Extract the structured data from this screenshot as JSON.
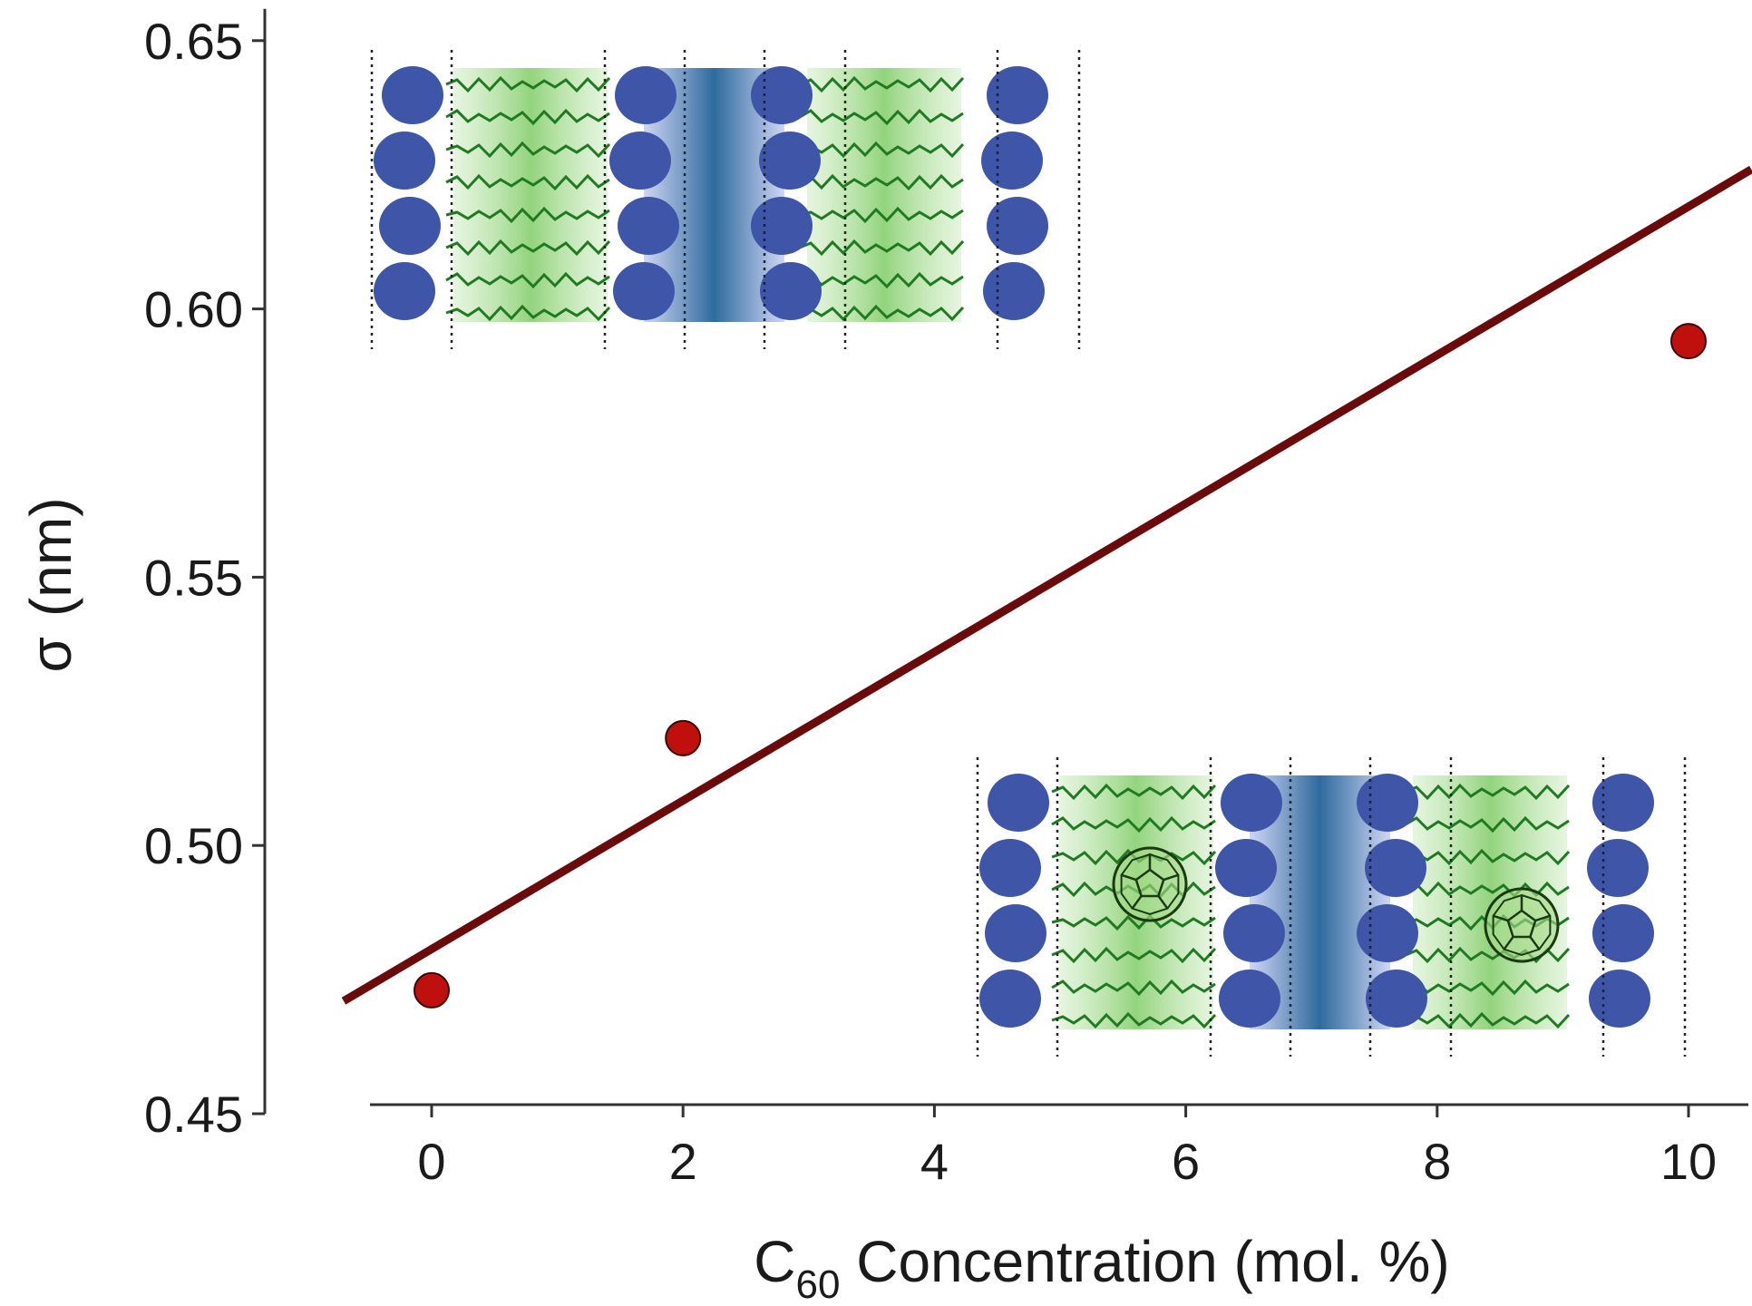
{
  "chart_data": {
    "type": "scatter",
    "title": "",
    "xlabel": {
      "prefix": "C",
      "subscript": "60",
      "rest": " Concentration (mol. %)"
    },
    "ylabel": {
      "symbol": "σ",
      "unit": "(nm)"
    },
    "xlim": [
      -0.5,
      10.5
    ],
    "ylim": [
      0.45,
      0.65
    ],
    "x_ticks": [
      0,
      2,
      4,
      6,
      8,
      10
    ],
    "x_tick_labels": [
      "0",
      "2",
      "4",
      "6",
      "8",
      "10"
    ],
    "y_ticks": [
      0.45,
      0.5,
      0.55,
      0.6,
      0.65
    ],
    "y_tick_labels": [
      "0.45",
      "0.50",
      "0.55",
      "0.60",
      "0.65"
    ],
    "grid": false,
    "legend": "none",
    "series": [
      {
        "marker": "circle",
        "color": "#c0100e",
        "x": [
          0,
          2,
          10
        ],
        "y": [
          0.473,
          0.52,
          0.594
        ]
      }
    ],
    "fit_line": {
      "color": "#6b0a0a",
      "x": [
        -0.7,
        10.5
      ],
      "y": [
        0.471,
        0.626
      ]
    },
    "insets": [
      {
        "position": "top-left",
        "description_icon": "lipid-bilayer-pair-icon",
        "has_fullerene": false
      },
      {
        "position": "bottom-right",
        "description_icon": "lipid-bilayer-pair-with-c60-icon",
        "has_fullerene": true
      }
    ],
    "colors": {
      "head": "#3f55a8",
      "tail": "#1f7a22",
      "tail_glow": "#8fd27a",
      "water": "#3a6fa8",
      "water_edge": "#c9d0ef",
      "fullerene": "#1a3a12",
      "axis": "#333333"
    }
  }
}
